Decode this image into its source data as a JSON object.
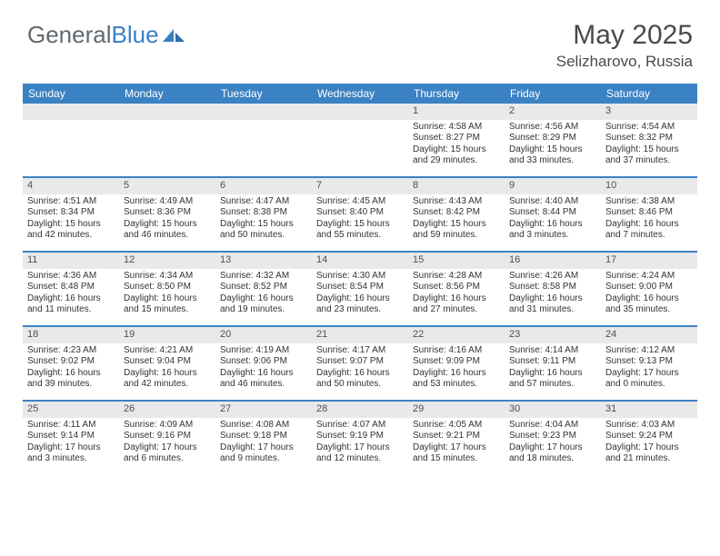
{
  "brand": {
    "part1": "General",
    "part2": "Blue"
  },
  "title": "May 2025",
  "location": "Selizharovo, Russia",
  "colors": {
    "header_bg": "#3b82c4",
    "header_text": "#ffffff",
    "daynum_bg": "#e8e9ea",
    "text": "#333333",
    "brand_gray": "#5f6a72",
    "brand_blue": "#3b7fc4",
    "border": "#3b82c4",
    "background": "#ffffff"
  },
  "day_names": [
    "Sunday",
    "Monday",
    "Tuesday",
    "Wednesday",
    "Thursday",
    "Friday",
    "Saturday"
  ],
  "weeks": [
    [
      {
        "n": "",
        "sr": "",
        "ss": "",
        "dl": ""
      },
      {
        "n": "",
        "sr": "",
        "ss": "",
        "dl": ""
      },
      {
        "n": "",
        "sr": "",
        "ss": "",
        "dl": ""
      },
      {
        "n": "",
        "sr": "",
        "ss": "",
        "dl": ""
      },
      {
        "n": "1",
        "sr": "Sunrise: 4:58 AM",
        "ss": "Sunset: 8:27 PM",
        "dl": "Daylight: 15 hours and 29 minutes."
      },
      {
        "n": "2",
        "sr": "Sunrise: 4:56 AM",
        "ss": "Sunset: 8:29 PM",
        "dl": "Daylight: 15 hours and 33 minutes."
      },
      {
        "n": "3",
        "sr": "Sunrise: 4:54 AM",
        "ss": "Sunset: 8:32 PM",
        "dl": "Daylight: 15 hours and 37 minutes."
      }
    ],
    [
      {
        "n": "4",
        "sr": "Sunrise: 4:51 AM",
        "ss": "Sunset: 8:34 PM",
        "dl": "Daylight: 15 hours and 42 minutes."
      },
      {
        "n": "5",
        "sr": "Sunrise: 4:49 AM",
        "ss": "Sunset: 8:36 PM",
        "dl": "Daylight: 15 hours and 46 minutes."
      },
      {
        "n": "6",
        "sr": "Sunrise: 4:47 AM",
        "ss": "Sunset: 8:38 PM",
        "dl": "Daylight: 15 hours and 50 minutes."
      },
      {
        "n": "7",
        "sr": "Sunrise: 4:45 AM",
        "ss": "Sunset: 8:40 PM",
        "dl": "Daylight: 15 hours and 55 minutes."
      },
      {
        "n": "8",
        "sr": "Sunrise: 4:43 AM",
        "ss": "Sunset: 8:42 PM",
        "dl": "Daylight: 15 hours and 59 minutes."
      },
      {
        "n": "9",
        "sr": "Sunrise: 4:40 AM",
        "ss": "Sunset: 8:44 PM",
        "dl": "Daylight: 16 hours and 3 minutes."
      },
      {
        "n": "10",
        "sr": "Sunrise: 4:38 AM",
        "ss": "Sunset: 8:46 PM",
        "dl": "Daylight: 16 hours and 7 minutes."
      }
    ],
    [
      {
        "n": "11",
        "sr": "Sunrise: 4:36 AM",
        "ss": "Sunset: 8:48 PM",
        "dl": "Daylight: 16 hours and 11 minutes."
      },
      {
        "n": "12",
        "sr": "Sunrise: 4:34 AM",
        "ss": "Sunset: 8:50 PM",
        "dl": "Daylight: 16 hours and 15 minutes."
      },
      {
        "n": "13",
        "sr": "Sunrise: 4:32 AM",
        "ss": "Sunset: 8:52 PM",
        "dl": "Daylight: 16 hours and 19 minutes."
      },
      {
        "n": "14",
        "sr": "Sunrise: 4:30 AM",
        "ss": "Sunset: 8:54 PM",
        "dl": "Daylight: 16 hours and 23 minutes."
      },
      {
        "n": "15",
        "sr": "Sunrise: 4:28 AM",
        "ss": "Sunset: 8:56 PM",
        "dl": "Daylight: 16 hours and 27 minutes."
      },
      {
        "n": "16",
        "sr": "Sunrise: 4:26 AM",
        "ss": "Sunset: 8:58 PM",
        "dl": "Daylight: 16 hours and 31 minutes."
      },
      {
        "n": "17",
        "sr": "Sunrise: 4:24 AM",
        "ss": "Sunset: 9:00 PM",
        "dl": "Daylight: 16 hours and 35 minutes."
      }
    ],
    [
      {
        "n": "18",
        "sr": "Sunrise: 4:23 AM",
        "ss": "Sunset: 9:02 PM",
        "dl": "Daylight: 16 hours and 39 minutes."
      },
      {
        "n": "19",
        "sr": "Sunrise: 4:21 AM",
        "ss": "Sunset: 9:04 PM",
        "dl": "Daylight: 16 hours and 42 minutes."
      },
      {
        "n": "20",
        "sr": "Sunrise: 4:19 AM",
        "ss": "Sunset: 9:06 PM",
        "dl": "Daylight: 16 hours and 46 minutes."
      },
      {
        "n": "21",
        "sr": "Sunrise: 4:17 AM",
        "ss": "Sunset: 9:07 PM",
        "dl": "Daylight: 16 hours and 50 minutes."
      },
      {
        "n": "22",
        "sr": "Sunrise: 4:16 AM",
        "ss": "Sunset: 9:09 PM",
        "dl": "Daylight: 16 hours and 53 minutes."
      },
      {
        "n": "23",
        "sr": "Sunrise: 4:14 AM",
        "ss": "Sunset: 9:11 PM",
        "dl": "Daylight: 16 hours and 57 minutes."
      },
      {
        "n": "24",
        "sr": "Sunrise: 4:12 AM",
        "ss": "Sunset: 9:13 PM",
        "dl": "Daylight: 17 hours and 0 minutes."
      }
    ],
    [
      {
        "n": "25",
        "sr": "Sunrise: 4:11 AM",
        "ss": "Sunset: 9:14 PM",
        "dl": "Daylight: 17 hours and 3 minutes."
      },
      {
        "n": "26",
        "sr": "Sunrise: 4:09 AM",
        "ss": "Sunset: 9:16 PM",
        "dl": "Daylight: 17 hours and 6 minutes."
      },
      {
        "n": "27",
        "sr": "Sunrise: 4:08 AM",
        "ss": "Sunset: 9:18 PM",
        "dl": "Daylight: 17 hours and 9 minutes."
      },
      {
        "n": "28",
        "sr": "Sunrise: 4:07 AM",
        "ss": "Sunset: 9:19 PM",
        "dl": "Daylight: 17 hours and 12 minutes."
      },
      {
        "n": "29",
        "sr": "Sunrise: 4:05 AM",
        "ss": "Sunset: 9:21 PM",
        "dl": "Daylight: 17 hours and 15 minutes."
      },
      {
        "n": "30",
        "sr": "Sunrise: 4:04 AM",
        "ss": "Sunset: 9:23 PM",
        "dl": "Daylight: 17 hours and 18 minutes."
      },
      {
        "n": "31",
        "sr": "Sunrise: 4:03 AM",
        "ss": "Sunset: 9:24 PM",
        "dl": "Daylight: 17 hours and 21 minutes."
      }
    ]
  ]
}
